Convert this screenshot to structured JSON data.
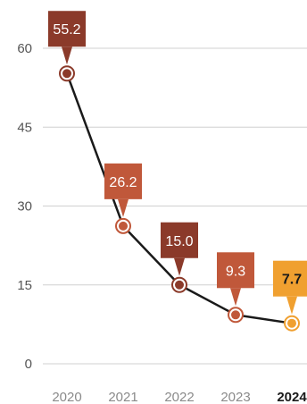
{
  "chart_data": {
    "type": "line",
    "categories": [
      "2020",
      "2021",
      "2022",
      "2023",
      "2024"
    ],
    "values": [
      55.2,
      26.2,
      15.0,
      9.3,
      7.7
    ],
    "value_labels": [
      "55.2",
      "26.2",
      "15.0",
      "9.3",
      "7.7"
    ],
    "highlight_category": "2024",
    "y_ticks": [
      0,
      15,
      30,
      45,
      60
    ],
    "ylim": [
      0,
      65
    ],
    "grid": true,
    "title": "",
    "xlabel": "",
    "ylabel": "",
    "colors": {
      "line": "#1a1a1a",
      "grid": "#d0d0d0",
      "bubbles": [
        "#8b3a2a",
        "#c0583a",
        "#8b3a2a",
        "#c0583a",
        "#f0a030"
      ],
      "highlight": "#f0a030"
    }
  }
}
